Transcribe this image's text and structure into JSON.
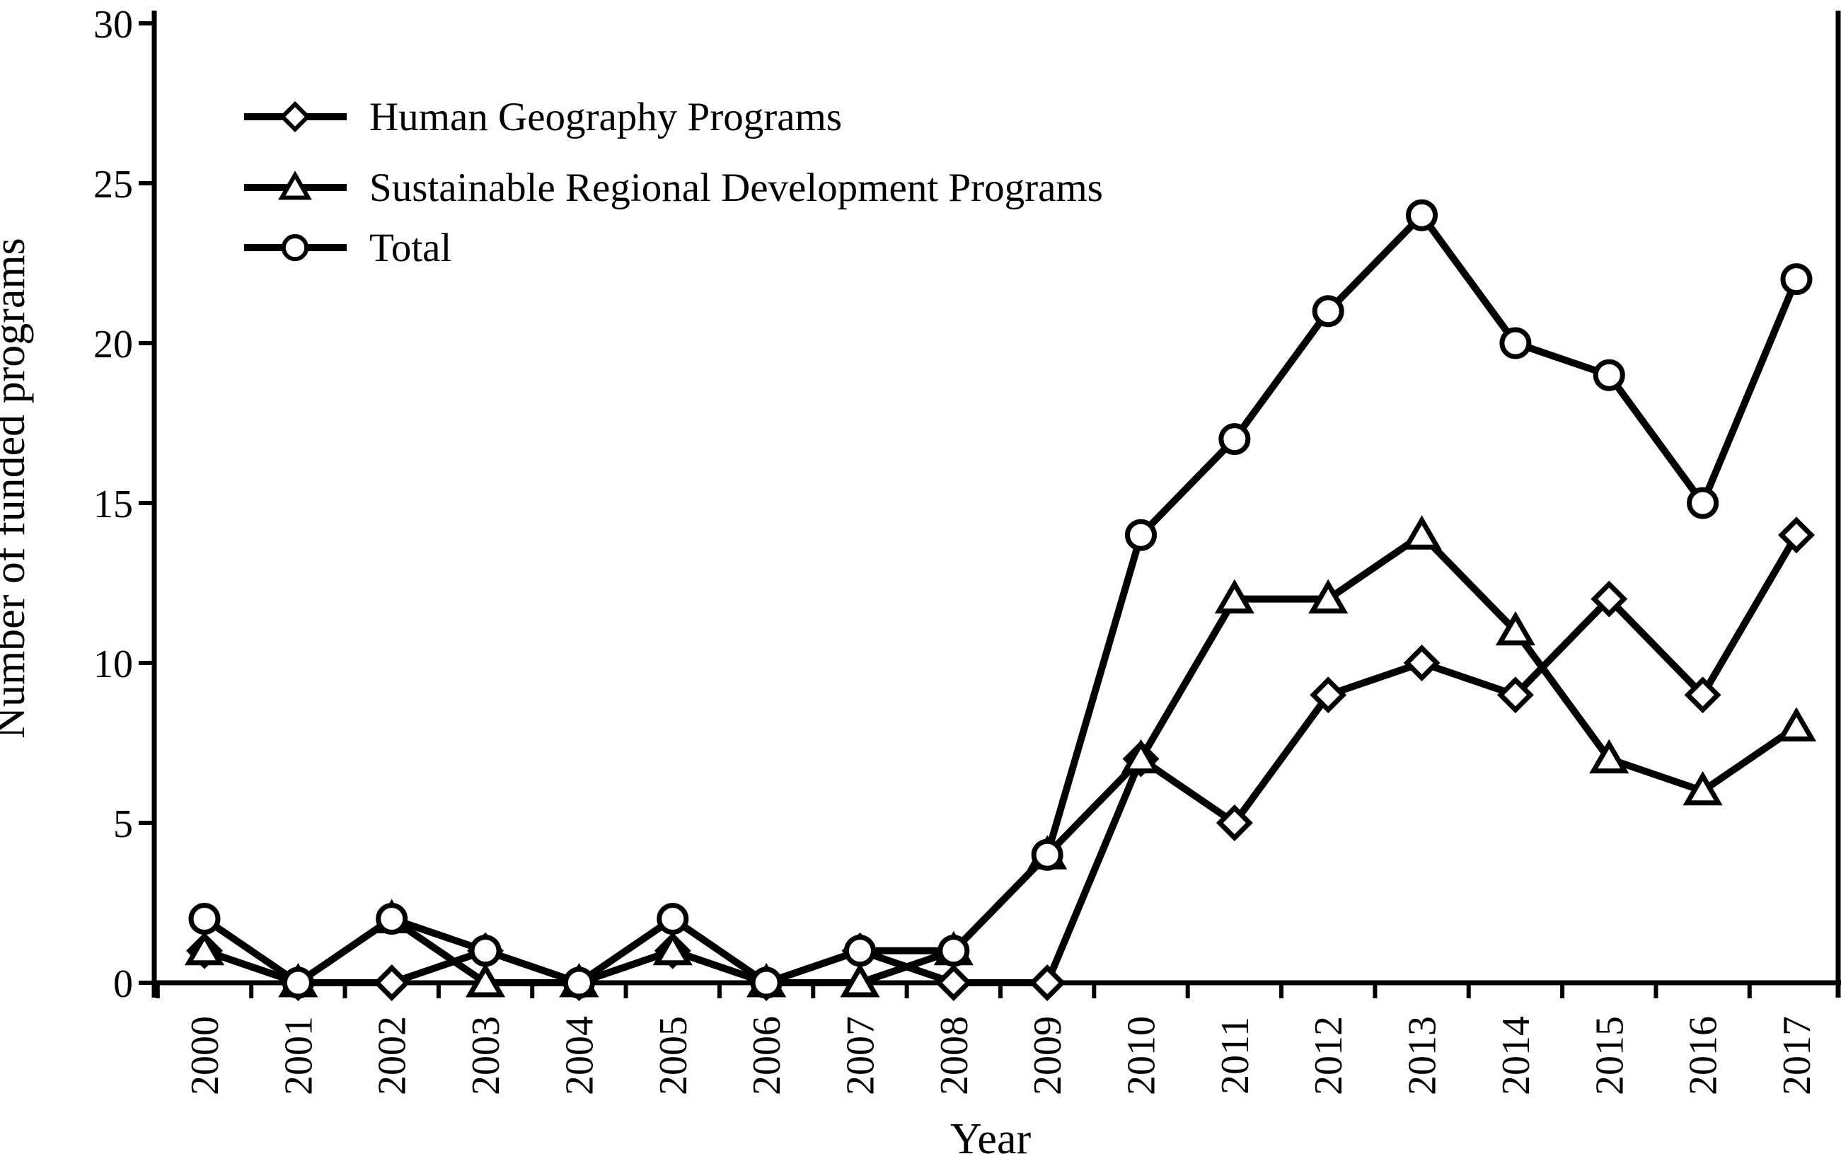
{
  "figure": {
    "background": "#ffffff",
    "stroke_color": "#000000",
    "marker_fill": "#ffffff"
  },
  "chart_data": {
    "type": "line",
    "title": "",
    "xlabel": "Year",
    "ylabel": "Number of funded programs",
    "x": [
      2000,
      2001,
      2002,
      2003,
      2004,
      2005,
      2006,
      2007,
      2008,
      2009,
      2010,
      2011,
      2012,
      2013,
      2014,
      2015,
      2016,
      2017
    ],
    "xtick_labels": [
      "2000",
      "2001",
      "2002",
      "2003",
      "2004",
      "2005",
      "2006",
      "2007",
      "2008",
      "2009",
      "2010",
      "2011",
      "2012",
      "2013",
      "2014",
      "2015",
      "2016",
      "2017"
    ],
    "xticks_rotation": 90,
    "ylim": [
      0,
      30
    ],
    "yticks": [
      0,
      5,
      10,
      15,
      20,
      25,
      30
    ],
    "grid": false,
    "legend_position": "top-left-inside",
    "series": [
      {
        "name": "Human Geography Programs",
        "marker": "diamond",
        "values": [
          1,
          0,
          0,
          1,
          0,
          1,
          0,
          1,
          0,
          0,
          7,
          5,
          9,
          10,
          9,
          12,
          9,
          14
        ]
      },
      {
        "name": "Sustainable Regional Development Programs",
        "marker": "triangle",
        "values": [
          1,
          0,
          2,
          0,
          0,
          1,
          0,
          0,
          1,
          4,
          7,
          12,
          12,
          14,
          11,
          7,
          6,
          8
        ]
      },
      {
        "name": "Total",
        "marker": "circle",
        "values": [
          2,
          0,
          2,
          1,
          0,
          2,
          0,
          1,
          1,
          4,
          14,
          17,
          21,
          24,
          20,
          19,
          15,
          22
        ]
      }
    ]
  }
}
